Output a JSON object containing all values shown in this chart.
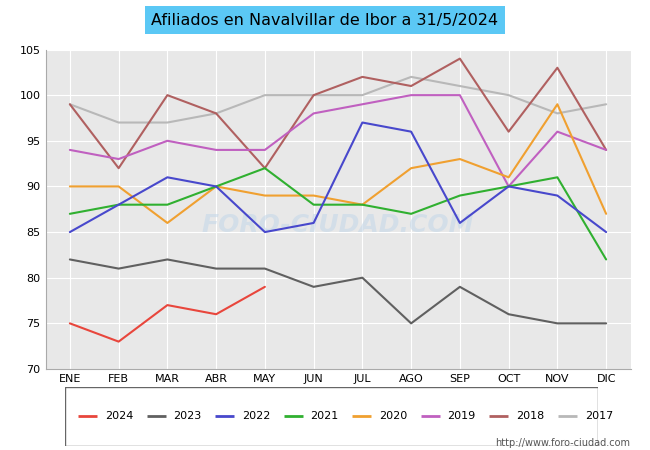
{
  "title": "Afiliados en Navalvillar de Ibor a 31/5/2024",
  "title_bg_color": "#5bc8f5",
  "xlabel": "",
  "ylabel": "",
  "ylim": [
    70,
    105
  ],
  "yticks": [
    70,
    75,
    80,
    85,
    90,
    95,
    100,
    105
  ],
  "months": [
    "ENE",
    "FEB",
    "MAR",
    "ABR",
    "MAY",
    "JUN",
    "JUL",
    "AGO",
    "SEP",
    "OCT",
    "NOV",
    "DIC"
  ],
  "series": {
    "2024": {
      "color": "#e8463c",
      "data": [
        75,
        73,
        77,
        76,
        79,
        null,
        null,
        null,
        null,
        null,
        null,
        null
      ]
    },
    "2023": {
      "color": "#606060",
      "data": [
        82,
        81,
        82,
        81,
        81,
        79,
        80,
        75,
        79,
        76,
        75,
        75
      ]
    },
    "2022": {
      "color": "#4848cc",
      "data": [
        85,
        88,
        91,
        90,
        85,
        86,
        97,
        96,
        86,
        90,
        89,
        85
      ]
    },
    "2021": {
      "color": "#30b030",
      "data": [
        87,
        88,
        88,
        90,
        92,
        88,
        88,
        87,
        89,
        90,
        91,
        82
      ]
    },
    "2020": {
      "color": "#f0a030",
      "data": [
        90,
        90,
        86,
        90,
        89,
        89,
        88,
        92,
        93,
        91,
        99,
        87
      ]
    },
    "2019": {
      "color": "#c060c0",
      "data": [
        94,
        93,
        95,
        94,
        94,
        98,
        99,
        100,
        100,
        90,
        96,
        94
      ]
    },
    "2018": {
      "color": "#b06060",
      "data": [
        99,
        92,
        100,
        98,
        92,
        100,
        102,
        101,
        104,
        96,
        103,
        94
      ]
    },
    "2017": {
      "color": "#b8b8b8",
      "data": [
        99,
        97,
        97,
        98,
        100,
        100,
        100,
        102,
        101,
        100,
        98,
        99
      ]
    }
  },
  "legend_order": [
    "2024",
    "2023",
    "2022",
    "2021",
    "2020",
    "2019",
    "2018",
    "2017"
  ],
  "watermark": "FORO-CIUDAD.COM",
  "footer_url": "http://www.foro-ciudad.com",
  "bg_color": "#ffffff",
  "plot_bg_color": "#e8e8e8",
  "grid_color": "#ffffff",
  "linewidth": 1.5
}
